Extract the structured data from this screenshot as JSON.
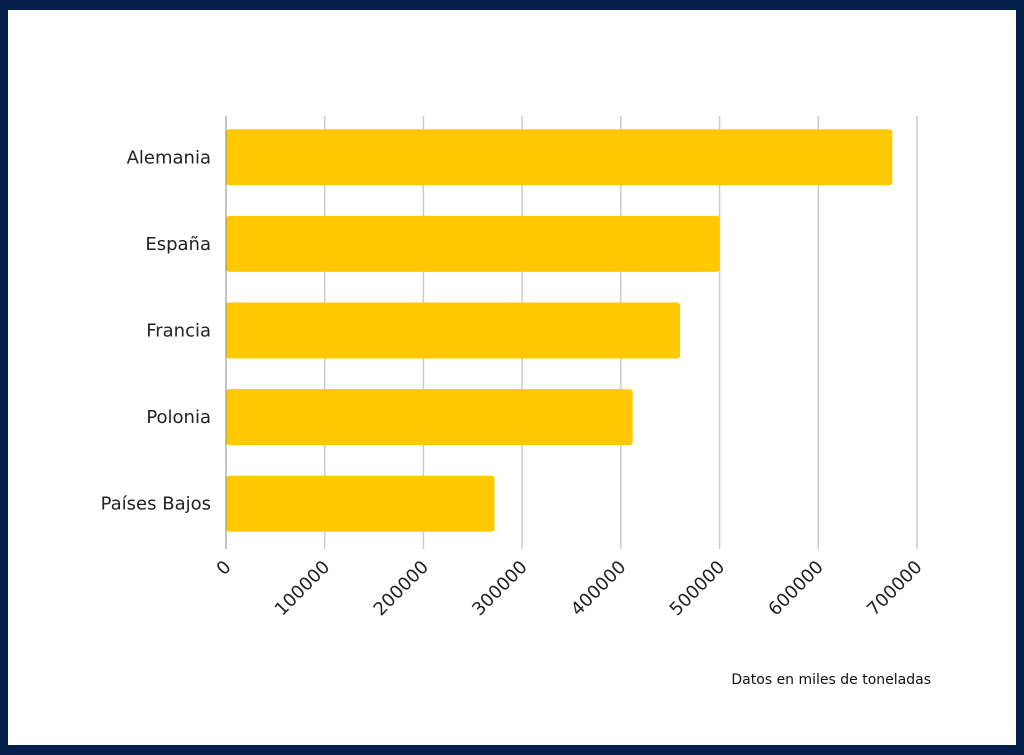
{
  "chart_data": {
    "type": "bar",
    "orientation": "horizontal",
    "categories": [
      "Alemania",
      "España",
      "Francia",
      "Polonia",
      "Países Bajos"
    ],
    "values": [
      675000,
      500000,
      460000,
      412000,
      272000
    ],
    "xlim": [
      0,
      700000
    ],
    "xticks": [
      "0",
      "100000",
      "200000",
      "300000",
      "400000",
      "500000",
      "600000",
      "700000"
    ],
    "grid": true,
    "bar_color": "#ffc800",
    "note": "Datos en miles de toneladas"
  },
  "frame_color": "#041e4a"
}
